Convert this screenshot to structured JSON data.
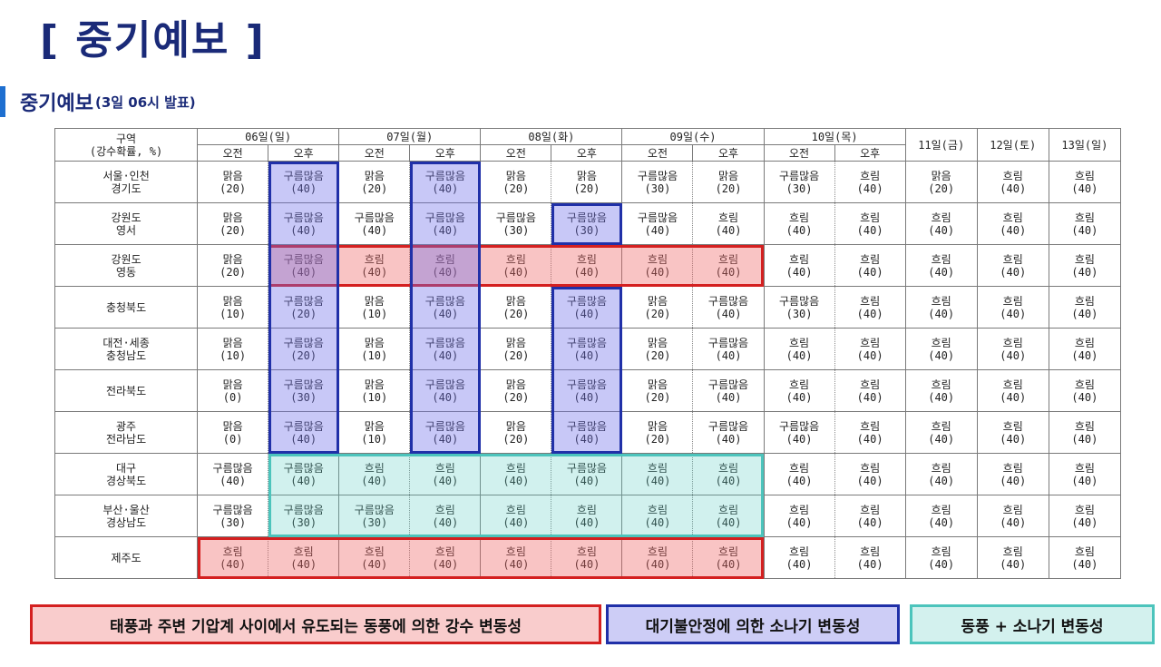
{
  "page": {
    "title": "[ 중기예보 ]"
  },
  "section": {
    "title": "중기예보",
    "subtitle": "(3일 06시 발표)"
  },
  "table": {
    "region_header": [
      "구역",
      "(강수확률, %)"
    ],
    "days": [
      {
        "label": "06일(일)",
        "am": "오전",
        "pm": "오후"
      },
      {
        "label": "07일(월)",
        "am": "오전",
        "pm": "오후"
      },
      {
        "label": "08일(화)",
        "am": "오전",
        "pm": "오후"
      },
      {
        "label": "09일(수)",
        "am": "오전",
        "pm": "오후"
      },
      {
        "label": "10일(목)",
        "am": "오전",
        "pm": "오후"
      },
      {
        "label": "11일(금)"
      },
      {
        "label": "12일(토)"
      },
      {
        "label": "13일(일)"
      }
    ],
    "rows": [
      {
        "region": [
          "서울·인천",
          "경기도"
        ],
        "cells": [
          {
            "w": "맑음",
            "p": "(20)"
          },
          {
            "w": "구름많음",
            "p": "(40)"
          },
          {
            "w": "맑음",
            "p": "(20)"
          },
          {
            "w": "구름많음",
            "p": "(40)"
          },
          {
            "w": "맑음",
            "p": "(20)"
          },
          {
            "w": "맑음",
            "p": "(20)"
          },
          {
            "w": "구름많음",
            "p": "(30)"
          },
          {
            "w": "맑음",
            "p": "(20)"
          },
          {
            "w": "구름많음",
            "p": "(30)"
          },
          {
            "w": "흐림",
            "p": "(40)"
          },
          {
            "w": "맑음",
            "p": "(20)"
          },
          {
            "w": "흐림",
            "p": "(40)"
          },
          {
            "w": "흐림",
            "p": "(40)"
          }
        ]
      },
      {
        "region": [
          "강원도",
          "영서"
        ],
        "cells": [
          {
            "w": "맑음",
            "p": "(20)"
          },
          {
            "w": "구름많음",
            "p": "(40)"
          },
          {
            "w": "구름많음",
            "p": "(40)"
          },
          {
            "w": "구름많음",
            "p": "(40)"
          },
          {
            "w": "구름많음",
            "p": "(30)"
          },
          {
            "w": "구름많음",
            "p": "(30)"
          },
          {
            "w": "구름많음",
            "p": "(40)"
          },
          {
            "w": "흐림",
            "p": "(40)"
          },
          {
            "w": "흐림",
            "p": "(40)"
          },
          {
            "w": "흐림",
            "p": "(40)"
          },
          {
            "w": "흐림",
            "p": "(40)"
          },
          {
            "w": "흐림",
            "p": "(40)"
          },
          {
            "w": "흐림",
            "p": "(40)"
          }
        ]
      },
      {
        "region": [
          "강원도",
          "영동"
        ],
        "cells": [
          {
            "w": "맑음",
            "p": "(20)"
          },
          {
            "w": "구름많음",
            "p": "(40)"
          },
          {
            "w": "흐림",
            "p": "(40)"
          },
          {
            "w": "흐림",
            "p": "(40)"
          },
          {
            "w": "흐림",
            "p": "(40)"
          },
          {
            "w": "흐림",
            "p": "(40)"
          },
          {
            "w": "흐림",
            "p": "(40)"
          },
          {
            "w": "흐림",
            "p": "(40)"
          },
          {
            "w": "흐림",
            "p": "(40)"
          },
          {
            "w": "흐림",
            "p": "(40)"
          },
          {
            "w": "흐림",
            "p": "(40)"
          },
          {
            "w": "흐림",
            "p": "(40)"
          },
          {
            "w": "흐림",
            "p": "(40)"
          }
        ]
      },
      {
        "region": [
          "충청북도"
        ],
        "cells": [
          {
            "w": "맑음",
            "p": "(10)"
          },
          {
            "w": "구름많음",
            "p": "(20)"
          },
          {
            "w": "맑음",
            "p": "(10)"
          },
          {
            "w": "구름많음",
            "p": "(40)"
          },
          {
            "w": "맑음",
            "p": "(20)"
          },
          {
            "w": "구름많음",
            "p": "(40)"
          },
          {
            "w": "맑음",
            "p": "(20)"
          },
          {
            "w": "구름많음",
            "p": "(40)"
          },
          {
            "w": "구름많음",
            "p": "(30)"
          },
          {
            "w": "흐림",
            "p": "(40)"
          },
          {
            "w": "흐림",
            "p": "(40)"
          },
          {
            "w": "흐림",
            "p": "(40)"
          },
          {
            "w": "흐림",
            "p": "(40)"
          }
        ]
      },
      {
        "region": [
          "대전·세종",
          "충청남도"
        ],
        "cells": [
          {
            "w": "맑음",
            "p": "(10)"
          },
          {
            "w": "구름많음",
            "p": "(20)"
          },
          {
            "w": "맑음",
            "p": "(10)"
          },
          {
            "w": "구름많음",
            "p": "(40)"
          },
          {
            "w": "맑음",
            "p": "(20)"
          },
          {
            "w": "구름많음",
            "p": "(40)"
          },
          {
            "w": "맑음",
            "p": "(20)"
          },
          {
            "w": "구름많음",
            "p": "(40)"
          },
          {
            "w": "흐림",
            "p": "(40)"
          },
          {
            "w": "흐림",
            "p": "(40)"
          },
          {
            "w": "흐림",
            "p": "(40)"
          },
          {
            "w": "흐림",
            "p": "(40)"
          },
          {
            "w": "흐림",
            "p": "(40)"
          }
        ]
      },
      {
        "region": [
          "전라북도"
        ],
        "cells": [
          {
            "w": "맑음",
            "p": "(0)"
          },
          {
            "w": "구름많음",
            "p": "(30)"
          },
          {
            "w": "맑음",
            "p": "(10)"
          },
          {
            "w": "구름많음",
            "p": "(40)"
          },
          {
            "w": "맑음",
            "p": "(20)"
          },
          {
            "w": "구름많음",
            "p": "(40)"
          },
          {
            "w": "맑음",
            "p": "(20)"
          },
          {
            "w": "구름많음",
            "p": "(40)"
          },
          {
            "w": "흐림",
            "p": "(40)"
          },
          {
            "w": "흐림",
            "p": "(40)"
          },
          {
            "w": "흐림",
            "p": "(40)"
          },
          {
            "w": "흐림",
            "p": "(40)"
          },
          {
            "w": "흐림",
            "p": "(40)"
          }
        ]
      },
      {
        "region": [
          "광주",
          "전라남도"
        ],
        "cells": [
          {
            "w": "맑음",
            "p": "(0)"
          },
          {
            "w": "구름많음",
            "p": "(40)"
          },
          {
            "w": "맑음",
            "p": "(10)"
          },
          {
            "w": "구름많음",
            "p": "(40)"
          },
          {
            "w": "맑음",
            "p": "(20)"
          },
          {
            "w": "구름많음",
            "p": "(40)"
          },
          {
            "w": "맑음",
            "p": "(20)"
          },
          {
            "w": "구름많음",
            "p": "(40)"
          },
          {
            "w": "구름많음",
            "p": "(40)"
          },
          {
            "w": "흐림",
            "p": "(40)"
          },
          {
            "w": "흐림",
            "p": "(40)"
          },
          {
            "w": "흐림",
            "p": "(40)"
          },
          {
            "w": "흐림",
            "p": "(40)"
          }
        ]
      },
      {
        "region": [
          "대구",
          "경상북도"
        ],
        "cells": [
          {
            "w": "구름많음",
            "p": "(40)"
          },
          {
            "w": "구름많음",
            "p": "(40)"
          },
          {
            "w": "흐림",
            "p": "(40)"
          },
          {
            "w": "흐림",
            "p": "(40)"
          },
          {
            "w": "흐림",
            "p": "(40)"
          },
          {
            "w": "구름많음",
            "p": "(40)"
          },
          {
            "w": "흐림",
            "p": "(40)"
          },
          {
            "w": "흐림",
            "p": "(40)"
          },
          {
            "w": "흐림",
            "p": "(40)"
          },
          {
            "w": "흐림",
            "p": "(40)"
          },
          {
            "w": "흐림",
            "p": "(40)"
          },
          {
            "w": "흐림",
            "p": "(40)"
          },
          {
            "w": "흐림",
            "p": "(40)"
          }
        ]
      },
      {
        "region": [
          "부산·울산",
          "경상남도"
        ],
        "cells": [
          {
            "w": "구름많음",
            "p": "(30)"
          },
          {
            "w": "구름많음",
            "p": "(30)"
          },
          {
            "w": "구름많음",
            "p": "(30)"
          },
          {
            "w": "흐림",
            "p": "(40)"
          },
          {
            "w": "흐림",
            "p": "(40)"
          },
          {
            "w": "흐림",
            "p": "(40)"
          },
          {
            "w": "흐림",
            "p": "(40)"
          },
          {
            "w": "흐림",
            "p": "(40)"
          },
          {
            "w": "흐림",
            "p": "(40)"
          },
          {
            "w": "흐림",
            "p": "(40)"
          },
          {
            "w": "흐림",
            "p": "(40)"
          },
          {
            "w": "흐림",
            "p": "(40)"
          },
          {
            "w": "흐림",
            "p": "(40)"
          }
        ]
      },
      {
        "region": [
          "제주도"
        ],
        "cells": [
          {
            "w": "흐림",
            "p": "(40)"
          },
          {
            "w": "흐림",
            "p": "(40)"
          },
          {
            "w": "흐림",
            "p": "(40)"
          },
          {
            "w": "흐림",
            "p": "(40)"
          },
          {
            "w": "흐림",
            "p": "(40)"
          },
          {
            "w": "흐림",
            "p": "(40)"
          },
          {
            "w": "흐림",
            "p": "(40)"
          },
          {
            "w": "흐림",
            "p": "(40)"
          },
          {
            "w": "흐림",
            "p": "(40)"
          },
          {
            "w": "흐림",
            "p": "(40)"
          },
          {
            "w": "흐림",
            "p": "(40)"
          },
          {
            "w": "흐림",
            "p": "(40)"
          },
          {
            "w": "흐림",
            "p": "(40)"
          }
        ]
      }
    ]
  },
  "legend": {
    "red": "태풍과 주변 기압계 사이에서 유도되는 동풍에 의한 강수 변동성",
    "blue": "대기불안정에 의한 소나기 변동성",
    "cyan": "동풍 + 소나기 변동성"
  },
  "colors": {
    "title": "#1a2a78",
    "section_bar": "#1e6fd0",
    "red_border": "#d42020",
    "blue_border": "#2030a8",
    "cyan_border": "#4cc4bc"
  }
}
